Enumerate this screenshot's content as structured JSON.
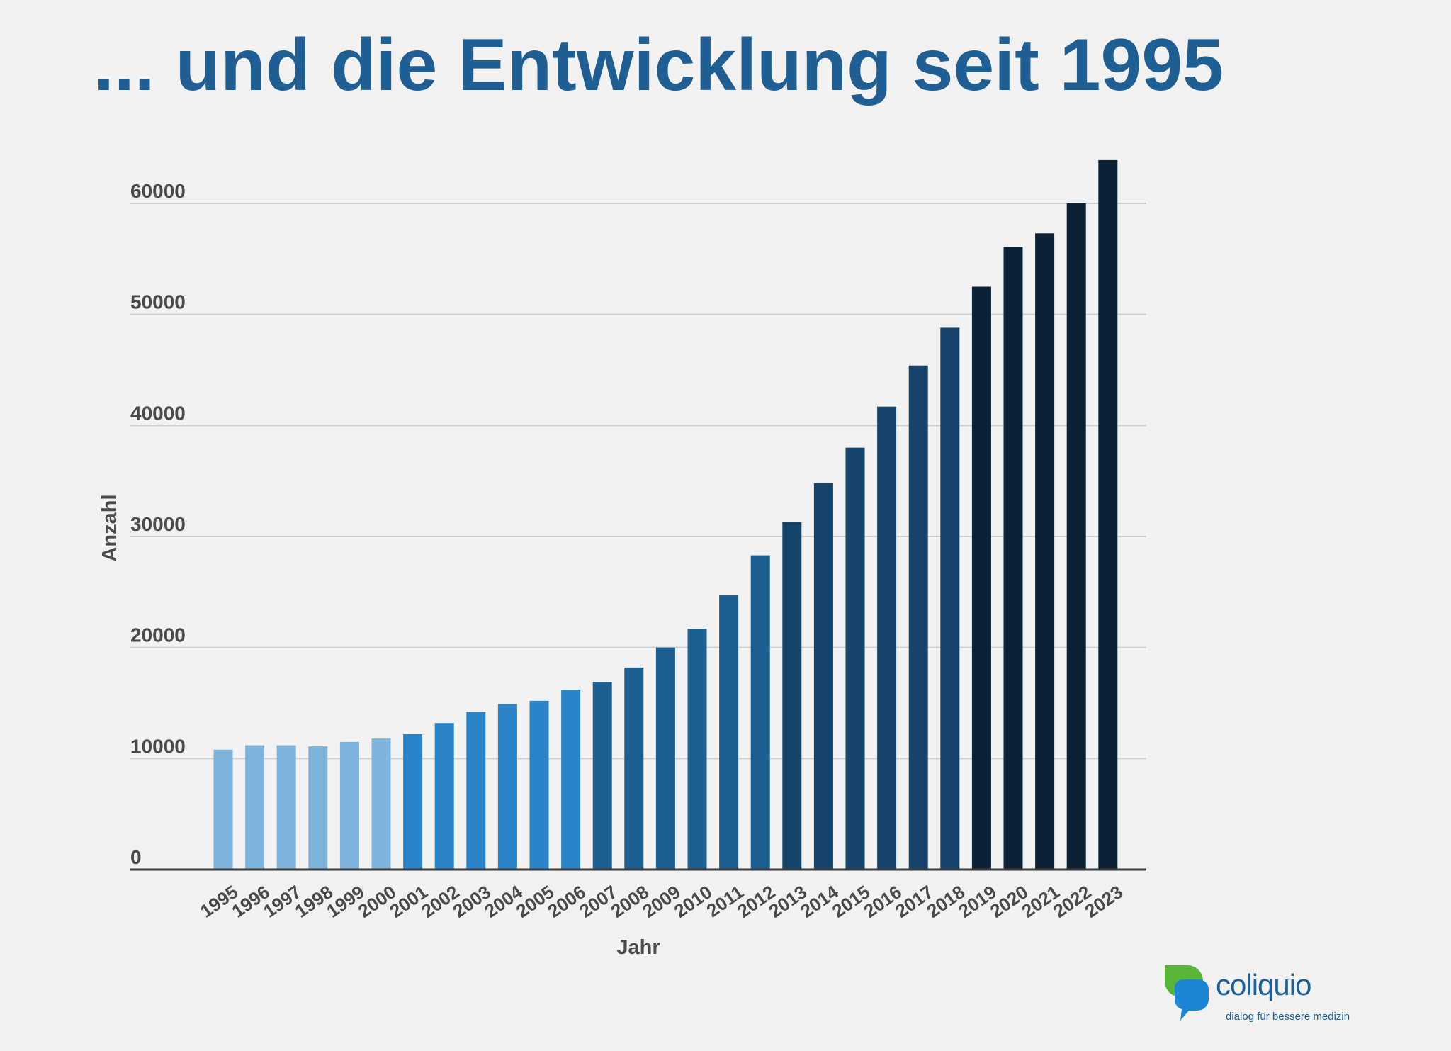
{
  "slide": {
    "title": "... und die Entwicklung seit 1995"
  },
  "chart_data": {
    "type": "bar",
    "title": "",
    "xlabel": "Jahr",
    "ylabel": "Anzahl",
    "ylim": [
      0,
      63000
    ],
    "yticks": [
      0,
      10000,
      20000,
      30000,
      40000,
      50000,
      60000
    ],
    "grid": true,
    "legend": "none",
    "categories": [
      "1995",
      "1996",
      "1997",
      "1998",
      "1999",
      "2000",
      "2001",
      "2002",
      "2003",
      "2004",
      "2005",
      "2006",
      "2007",
      "2008",
      "2009",
      "2010",
      "2011",
      "2012",
      "2013",
      "2014",
      "2015",
      "2016",
      "2017",
      "2018",
      "2019",
      "2020",
      "2021",
      "2022",
      "2023"
    ],
    "values": [
      10800,
      11200,
      11200,
      11100,
      11500,
      11800,
      12200,
      13200,
      14200,
      14900,
      15200,
      16200,
      16900,
      18200,
      20000,
      21700,
      24700,
      28300,
      31300,
      34800,
      38000,
      41700,
      45400,
      48800,
      52500,
      56100,
      57300,
      60000,
      63900
    ],
    "bar_colors": [
      "#7eb3dc",
      "#7eb3dc",
      "#7eb3dc",
      "#7eb3dc",
      "#7eb3dc",
      "#7eb3dc",
      "#2c84c8",
      "#2c84c8",
      "#2c84c8",
      "#2c84c8",
      "#2c84c8",
      "#2c84c8",
      "#1d5f91",
      "#1d5f91",
      "#1d5f91",
      "#1d5f91",
      "#1d5f91",
      "#1d5f91",
      "#16446b",
      "#16446b",
      "#16446b",
      "#16446b",
      "#16446b",
      "#16446b",
      "#0c2134",
      "#0c2134",
      "#0c2134",
      "#0c2134",
      "#0c2134"
    ]
  },
  "logo": {
    "name": "coliquio",
    "tagline": "dialog für bessere medizin",
    "colors": {
      "green": "#58b43a",
      "blue": "#1d87d6",
      "text": "#1d5f9a"
    }
  }
}
